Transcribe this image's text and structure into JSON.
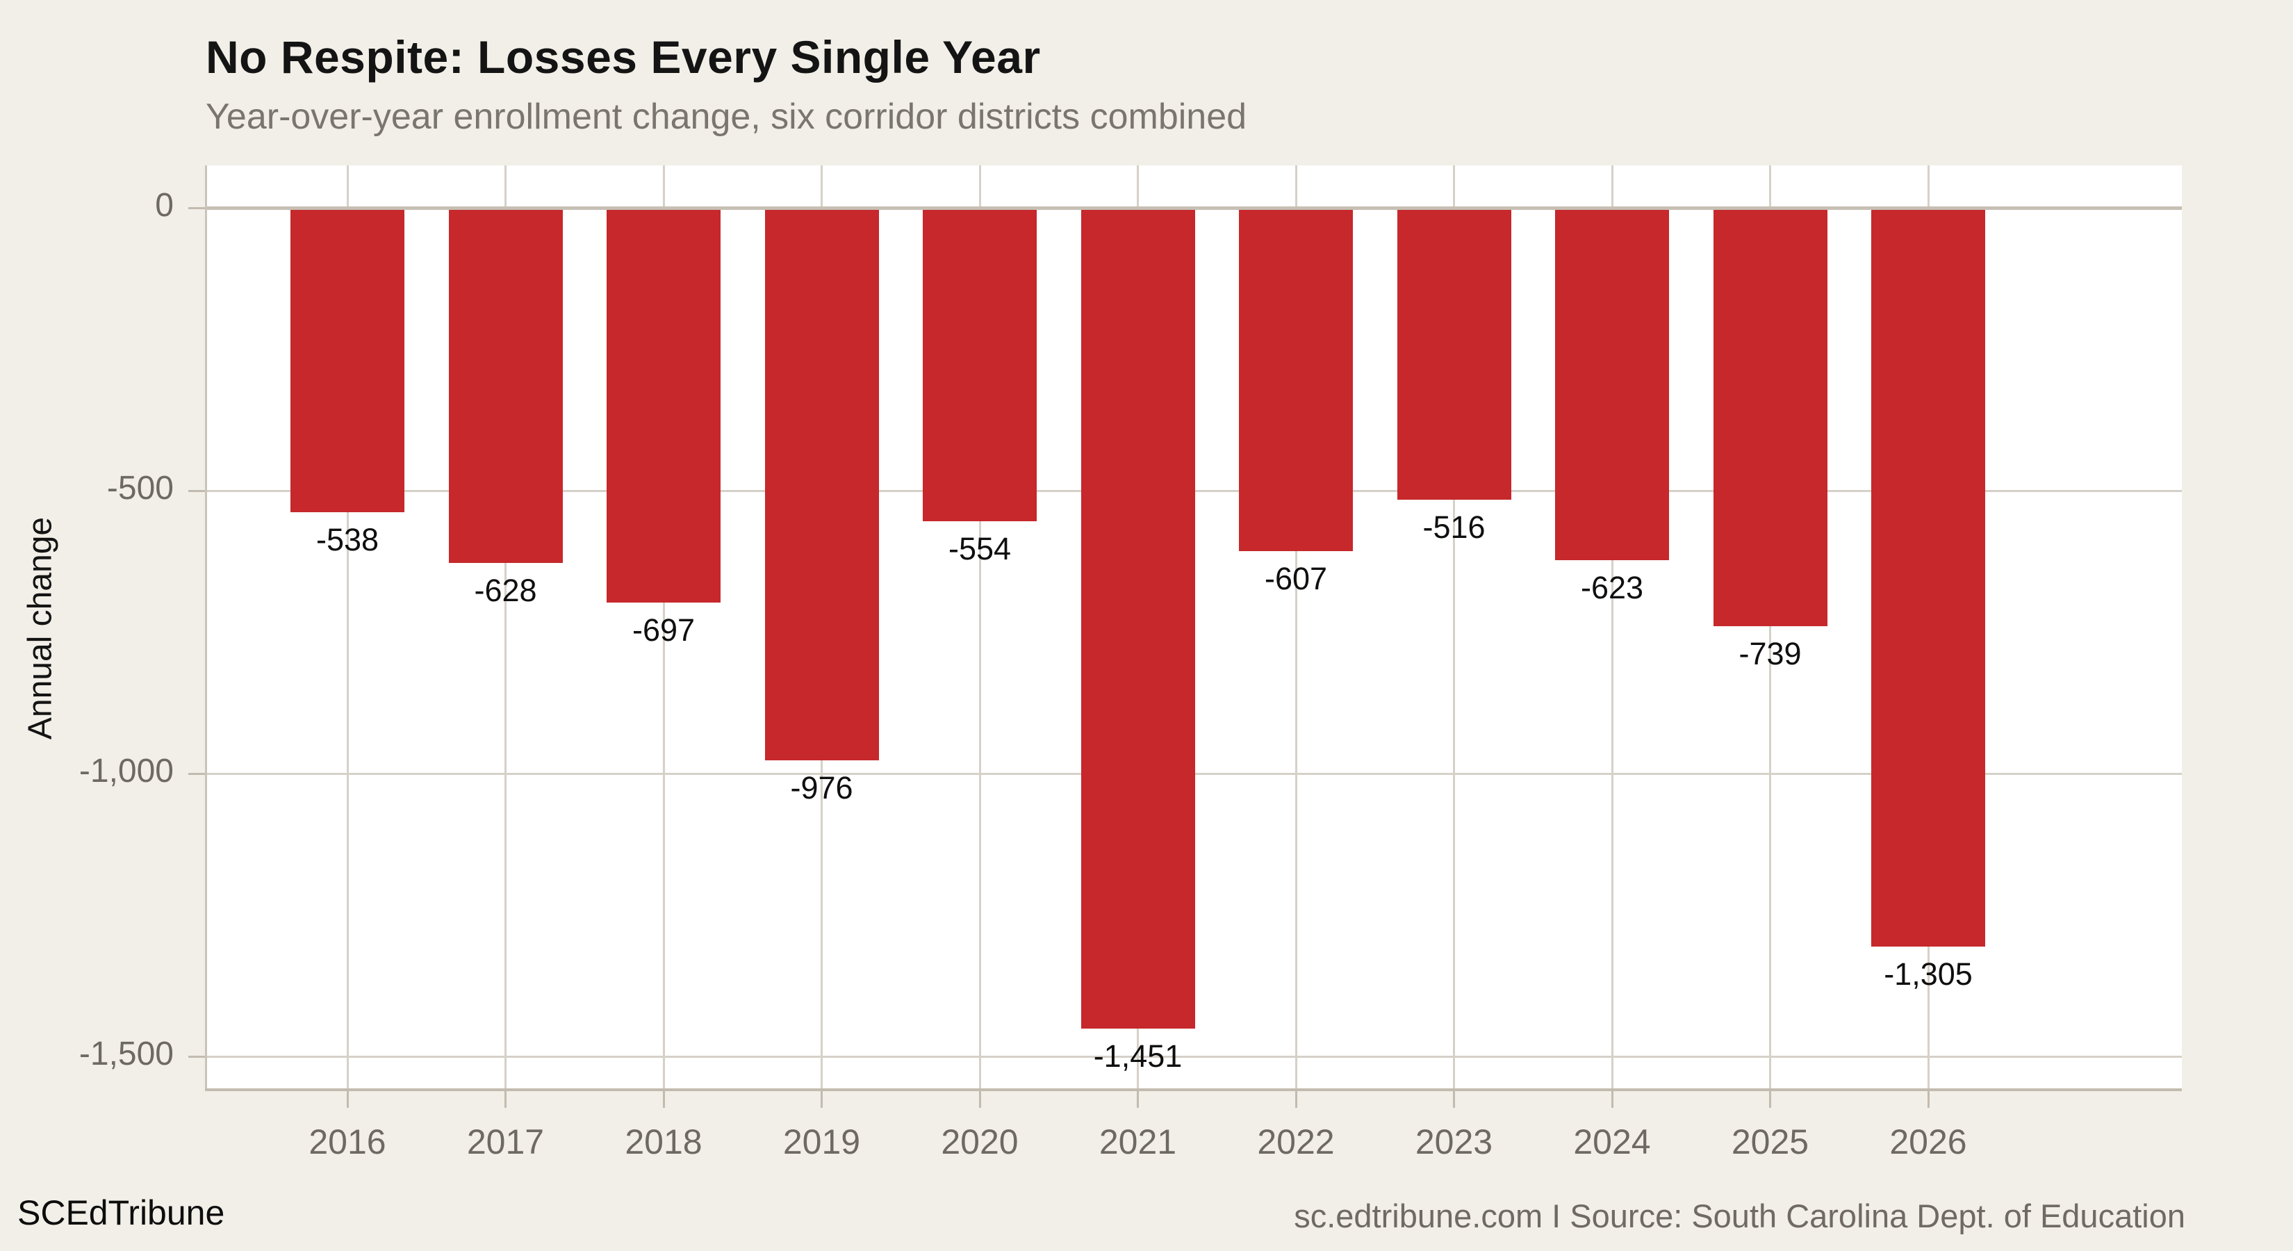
{
  "title": "No Respite: Losses Every Single Year",
  "subtitle": "Year-over-year enrollment change, six corridor districts combined",
  "footer": {
    "brand": "SCEdTribune",
    "credit": "sc.edtribune.com I Source: South Carolina Dept. of Education"
  },
  "chart_data": {
    "type": "bar",
    "title": "No Respite: Losses Every Single Year",
    "subtitle": "Year-over-year enrollment change, six corridor districts combined",
    "categories": [
      "2016",
      "2017",
      "2018",
      "2019",
      "2020",
      "2021",
      "2022",
      "2023",
      "2024",
      "2025",
      "2026"
    ],
    "values": [
      -538,
      -628,
      -697,
      -976,
      -554,
      -1451,
      -607,
      -516,
      -623,
      -739,
      -1305
    ],
    "value_labels": [
      "-538",
      "-628",
      "-697",
      "-976",
      "-554",
      "-1,451",
      "-607",
      "-516",
      "-623",
      "-739",
      "-1,305"
    ],
    "xlabel": "",
    "ylabel": "Annual change",
    "ylim": [
      -1561,
      75
    ],
    "yticks": [
      {
        "value": 0,
        "label": "0"
      },
      {
        "value": -500,
        "label": "-500"
      },
      {
        "value": -1000,
        "label": "-1,000"
      },
      {
        "value": -1500,
        "label": "-1,500"
      }
    ],
    "grid": true,
    "legend": false,
    "colors": {
      "bar": "#C6282B",
      "page_background": "#F2EFE8",
      "plot_background": "#FFFFFF",
      "gridline": "#D6D1C8",
      "zero_line": "#C6BFB4",
      "axis_spine": "#C2BBAF",
      "tick_label": "#6E6A63",
      "title": "#141414",
      "subtitle": "#7A766F",
      "value_label": "#0F0F0F"
    }
  }
}
